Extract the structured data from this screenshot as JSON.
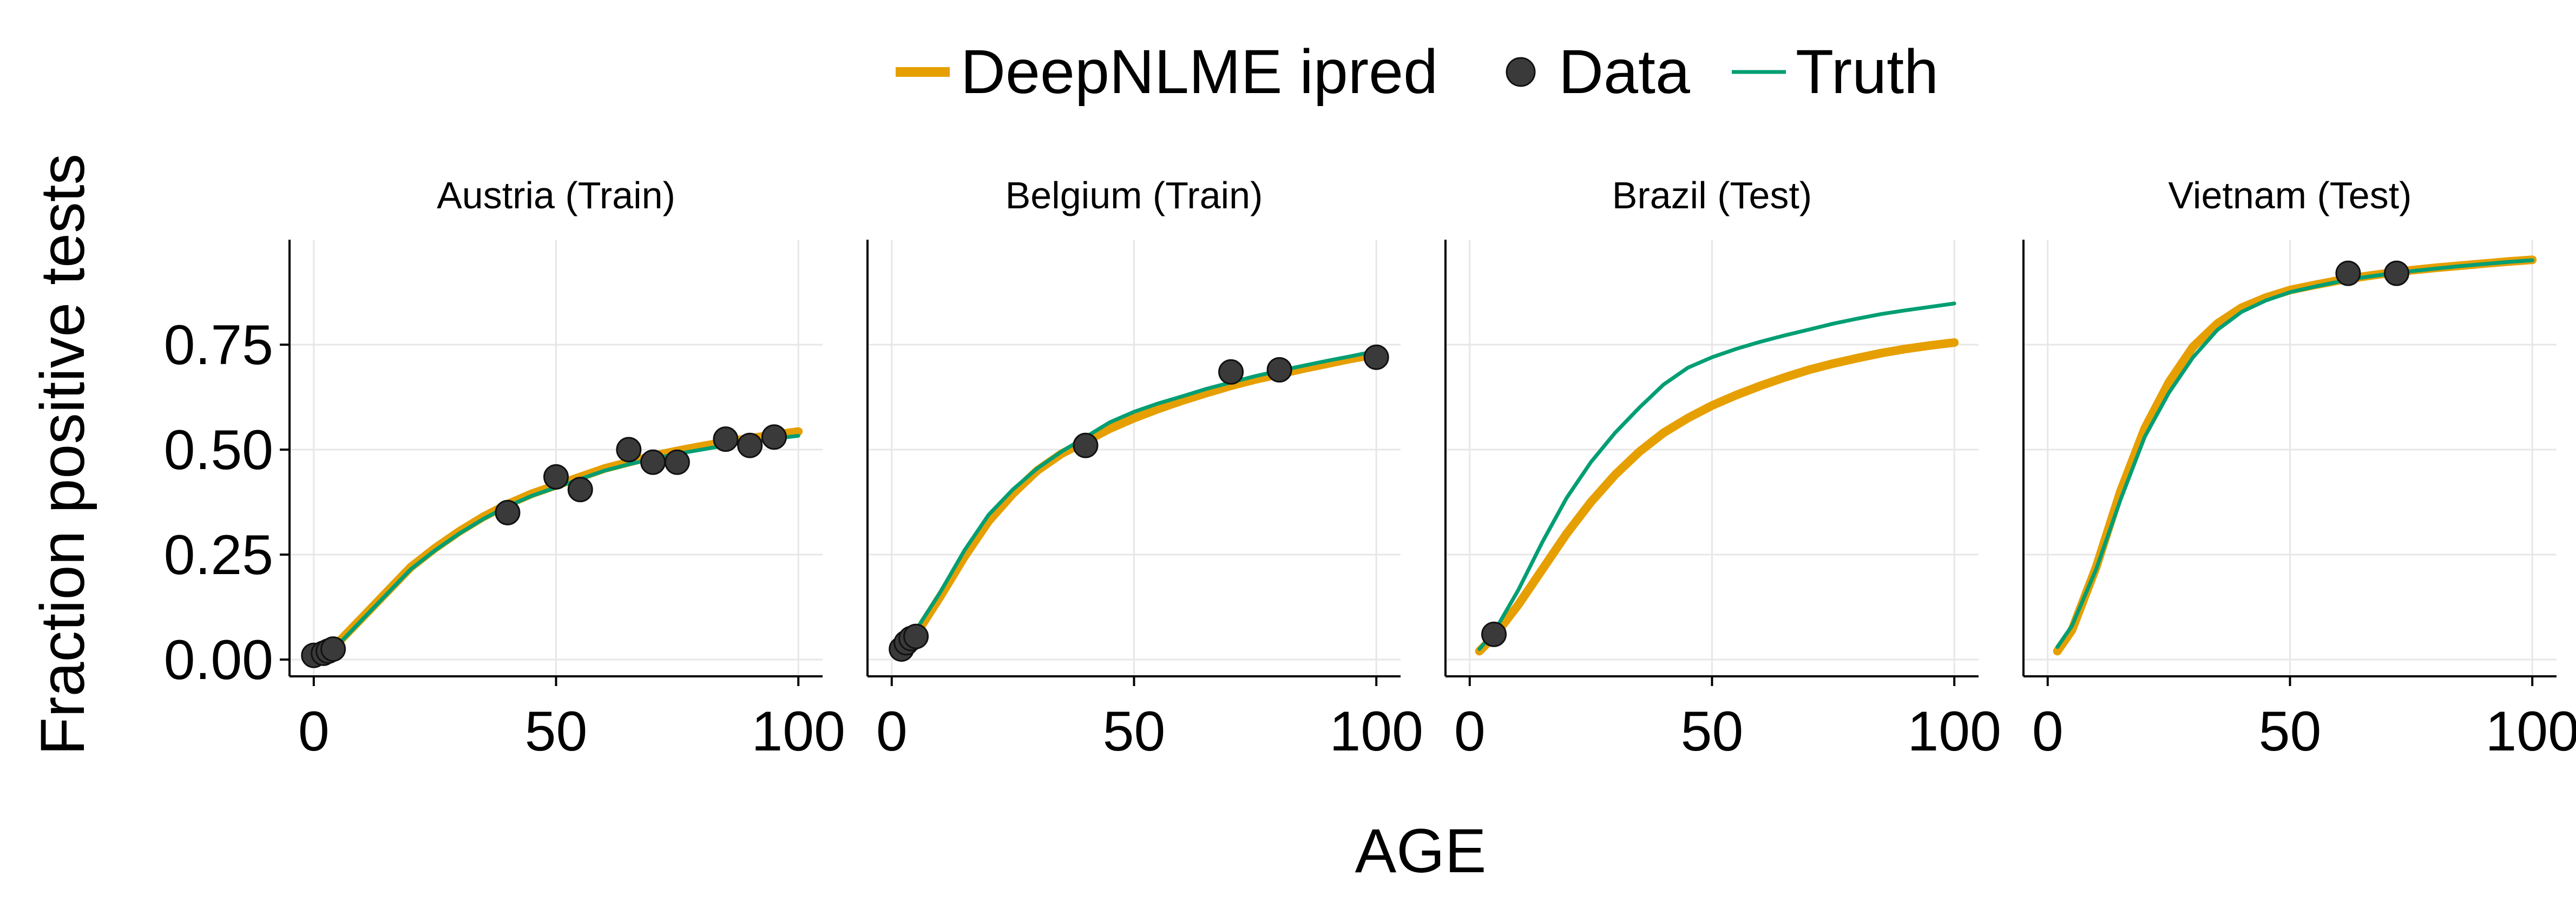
{
  "chart_data": {
    "type": "line",
    "xlabel": "AGE",
    "ylabel": "Fraction positive tests",
    "xlim": [
      -5,
      105
    ],
    "ylim": [
      -0.04,
      1.0
    ],
    "xticks": [
      0,
      50,
      100
    ],
    "yticks": [
      0.0,
      0.25,
      0.5,
      0.75
    ],
    "xtick_labels": [
      "0",
      "50",
      "100"
    ],
    "ytick_labels": [
      "0.00",
      "0.25",
      "0.50",
      "0.75"
    ],
    "grid": true,
    "legend": {
      "position": "top-center",
      "entries": [
        {
          "label": "DeepNLME ipred",
          "marker": "thick-line",
          "color": "#E69F00"
        },
        {
          "label": "Data",
          "marker": "dot",
          "color": "#3a3a3a"
        },
        {
          "label": "Truth",
          "marker": "thin-line",
          "color": "#009E73"
        }
      ]
    },
    "colors": {
      "ipred": "#E69F00",
      "data": "#3a3a3a",
      "truth": "#009E73"
    },
    "panels": [
      {
        "title": "Austria (Train)",
        "series": [
          {
            "name": "DeepNLME ipred",
            "x": [
              0,
              5,
              10,
              15,
              20,
              25,
              30,
              35,
              40,
              45,
              50,
              55,
              60,
              65,
              70,
              75,
              80,
              85,
              90,
              95,
              100
            ],
            "y": [
              0.0,
              0.04,
              0.1,
              0.16,
              0.22,
              0.265,
              0.305,
              0.34,
              0.37,
              0.395,
              0.415,
              0.435,
              0.455,
              0.47,
              0.485,
              0.497,
              0.508,
              0.518,
              0.527,
              0.535,
              0.543
            ]
          },
          {
            "name": "Truth",
            "x": [
              0,
              5,
              10,
              15,
              20,
              25,
              30,
              35,
              40,
              45,
              50,
              55,
              60,
              65,
              70,
              75,
              80,
              85,
              90,
              95,
              100
            ],
            "y": [
              0.005,
              0.035,
              0.095,
              0.155,
              0.215,
              0.26,
              0.3,
              0.335,
              0.365,
              0.39,
              0.41,
              0.43,
              0.45,
              0.465,
              0.478,
              0.49,
              0.5,
              0.51,
              0.518,
              0.526,
              0.533
            ]
          },
          {
            "name": "Data",
            "x": [
              0,
              2,
              3,
              4,
              40,
              50,
              55,
              65,
              70,
              75,
              85,
              90,
              95
            ],
            "y": [
              0.01,
              0.015,
              0.02,
              0.025,
              0.35,
              0.435,
              0.405,
              0.5,
              0.47,
              0.47,
              0.525,
              0.51,
              0.53
            ]
          }
        ]
      },
      {
        "title": "Belgium (Train)",
        "series": [
          {
            "name": "DeepNLME ipred",
            "x": [
              2,
              5,
              10,
              15,
              20,
              25,
              30,
              35,
              40,
              45,
              50,
              55,
              60,
              65,
              70,
              75,
              80,
              85,
              90,
              95,
              100
            ],
            "y": [
              0.02,
              0.06,
              0.15,
              0.245,
              0.33,
              0.395,
              0.45,
              0.49,
              0.52,
              0.55,
              0.575,
              0.597,
              0.617,
              0.635,
              0.652,
              0.667,
              0.68,
              0.693,
              0.705,
              0.717,
              0.727
            ]
          },
          {
            "name": "Truth",
            "x": [
              2,
              5,
              10,
              15,
              20,
              25,
              30,
              35,
              40,
              45,
              50,
              55,
              60,
              65,
              70,
              75,
              80,
              85,
              90,
              95,
              100
            ],
            "y": [
              0.025,
              0.07,
              0.16,
              0.26,
              0.345,
              0.405,
              0.455,
              0.495,
              0.53,
              0.565,
              0.59,
              0.61,
              0.627,
              0.645,
              0.66,
              0.675,
              0.688,
              0.7,
              0.712,
              0.723,
              0.735
            ]
          },
          {
            "name": "Data",
            "x": [
              2,
              3,
              4,
              5,
              40,
              70,
              80,
              100
            ],
            "y": [
              0.025,
              0.04,
              0.05,
              0.055,
              0.51,
              0.685,
              0.69,
              0.72
            ]
          }
        ]
      },
      {
        "title": "Brazil (Test)",
        "series": [
          {
            "name": "DeepNLME ipred",
            "x": [
              2,
              5,
              10,
              15,
              20,
              25,
              30,
              35,
              40,
              45,
              50,
              55,
              60,
              65,
              70,
              75,
              80,
              85,
              90,
              95,
              100
            ],
            "y": [
              0.02,
              0.055,
              0.13,
              0.215,
              0.3,
              0.375,
              0.44,
              0.495,
              0.54,
              0.575,
              0.605,
              0.63,
              0.652,
              0.672,
              0.69,
              0.705,
              0.718,
              0.73,
              0.74,
              0.748,
              0.755
            ]
          },
          {
            "name": "Truth",
            "x": [
              2,
              5,
              10,
              15,
              20,
              25,
              30,
              35,
              40,
              45,
              50,
              55,
              60,
              65,
              70,
              75,
              80,
              85,
              90,
              95,
              100
            ],
            "y": [
              0.025,
              0.065,
              0.165,
              0.28,
              0.385,
              0.47,
              0.54,
              0.6,
              0.655,
              0.695,
              0.72,
              0.74,
              0.757,
              0.772,
              0.786,
              0.8,
              0.812,
              0.823,
              0.832,
              0.84,
              0.848
            ]
          },
          {
            "name": "Data",
            "x": [
              5
            ],
            "y": [
              0.06
            ]
          }
        ]
      },
      {
        "title": "Vietnam (Test)",
        "series": [
          {
            "name": "DeepNLME ipred",
            "x": [
              2,
              5,
              10,
              15,
              20,
              25,
              30,
              35,
              40,
              45,
              50,
              55,
              60,
              65,
              70,
              75,
              80,
              85,
              90,
              95,
              100
            ],
            "y": [
              0.02,
              0.07,
              0.22,
              0.4,
              0.55,
              0.66,
              0.745,
              0.8,
              0.838,
              0.862,
              0.88,
              0.892,
              0.903,
              0.912,
              0.92,
              0.927,
              0.933,
              0.938,
              0.943,
              0.948,
              0.952
            ]
          },
          {
            "name": "Truth",
            "x": [
              2,
              5,
              10,
              15,
              20,
              25,
              30,
              35,
              40,
              45,
              50,
              55,
              60,
              65,
              70,
              75,
              80,
              85,
              90,
              95,
              100
            ],
            "y": [
              0.03,
              0.08,
              0.215,
              0.38,
              0.53,
              0.635,
              0.72,
              0.785,
              0.828,
              0.855,
              0.875,
              0.888,
              0.9,
              0.91,
              0.918,
              0.925,
              0.931,
              0.937,
              0.942,
              0.947,
              0.951
            ]
          },
          {
            "name": "Data",
            "x": [
              62,
              72
            ],
            "y": [
              0.92,
              0.92
            ]
          }
        ]
      }
    ]
  }
}
